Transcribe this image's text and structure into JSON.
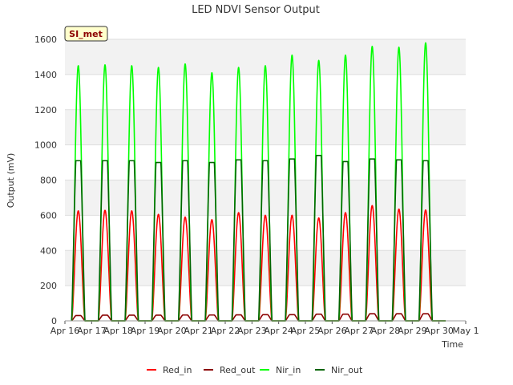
{
  "chart_data": {
    "type": "line",
    "title": "LED NDVI Sensor Output",
    "xlabel": "Time",
    "ylabel": "Output (mV)",
    "badge": "SI_met",
    "ylim": [
      0,
      1600
    ],
    "yticks": [
      0,
      200,
      400,
      600,
      800,
      1000,
      1200,
      1400,
      1600
    ],
    "xlim": [
      16,
      31
    ],
    "xticks": [
      "Apr 16",
      "Apr 17",
      "Apr 18",
      "Apr 19",
      "Apr 20",
      "Apr 21",
      "Apr 22",
      "Apr 23",
      "Apr 24",
      "Apr 25",
      "Apr 26",
      "Apr 27",
      "Apr 28",
      "Apr 29",
      "Apr 30",
      "May 1"
    ],
    "grid": true,
    "legend_position": "bottom",
    "colors": {
      "Red_in": "#ff0000",
      "Red_out": "#8b0000",
      "Nir_in": "#00ff00",
      "Nir_out": "#006400"
    },
    "day_peaks": {
      "days": [
        "Apr 16",
        "Apr 17",
        "Apr 18",
        "Apr 19",
        "Apr 20",
        "Apr 21",
        "Apr 22",
        "Apr 23",
        "Apr 24",
        "Apr 25",
        "Apr 26",
        "Apr 27",
        "Apr 28",
        "Apr 29"
      ],
      "series": [
        {
          "name": "Red_in",
          "values": [
            625,
            628,
            625,
            605,
            590,
            575,
            615,
            600,
            600,
            585,
            615,
            655,
            635,
            630
          ]
        },
        {
          "name": "Red_out",
          "values": [
            30,
            32,
            32,
            32,
            33,
            33,
            34,
            35,
            35,
            38,
            38,
            40,
            40,
            40
          ]
        },
        {
          "name": "Nir_in",
          "values": [
            1450,
            1455,
            1450,
            1440,
            1460,
            1410,
            1440,
            1450,
            1510,
            1480,
            1510,
            1560,
            1555,
            1580
          ]
        },
        {
          "name": "Nir_out",
          "values": [
            910,
            910,
            910,
            900,
            910,
            900,
            915,
            910,
            920,
            940,
            905,
            920,
            915,
            910
          ]
        }
      ]
    }
  }
}
